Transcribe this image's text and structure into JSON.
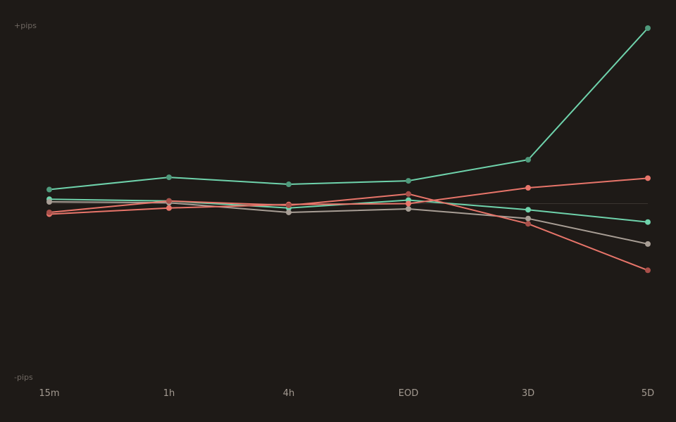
{
  "chart_data": {
    "type": "line",
    "title": "",
    "xlabel": "",
    "ylabel": "",
    "y_top_label": "+pips",
    "y_bottom_label": "-pips",
    "categories": [
      "15m",
      "1h",
      "4h",
      "EOD",
      "3D",
      "5D"
    ],
    "ylim": [
      -100,
      100
    ],
    "grid": false,
    "zero_line": true,
    "legend": "none",
    "series": [
      {
        "color": "#6fd3ac",
        "point_color": "#4f9a7c",
        "values": [
          8,
          15,
          11,
          13,
          25,
          100
        ]
      },
      {
        "color": "#6fd3ac",
        "point_color": "#6fd3ac",
        "values": [
          2.5,
          1.5,
          -2.5,
          2,
          -3.5,
          -10.5
        ]
      },
      {
        "color": "#a89e95",
        "point_color": "#a89e95",
        "values": [
          1,
          0.5,
          -5,
          -3,
          -8.5,
          -23
        ]
      },
      {
        "color": "#e8756a",
        "point_color": "#e8756a",
        "values": [
          -6,
          -2.5,
          -0.5,
          0,
          9,
          14.5
        ]
      },
      {
        "color": "#e8756a",
        "point_color": "#a94f49",
        "values": [
          -5,
          1.5,
          -1,
          5.5,
          -11.5,
          -38
        ]
      }
    ]
  }
}
